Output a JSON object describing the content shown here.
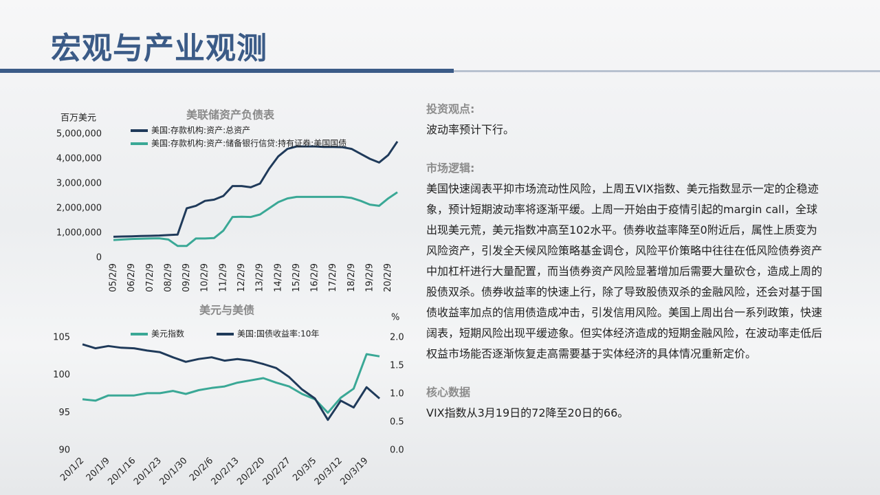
{
  "header": {
    "title": "宏观与产业观测"
  },
  "chart_data": [
    {
      "type": "line",
      "title": "美联储资产负债表",
      "ylabel": "百万美元",
      "categories": [
        "05/2/9",
        null,
        "06/2/9",
        null,
        "07/2/9",
        null,
        "08/2/9",
        null,
        "09/2/9",
        null,
        "10/2/9",
        null,
        "11/2/9",
        null,
        "12/2/9",
        null,
        "13/2/9",
        null,
        "14/2/9",
        null,
        "15/2/9",
        null,
        "16/2/9",
        null,
        "17/2/9",
        null,
        "18/2/9",
        null,
        "19/2/9",
        null,
        "20/2/9",
        null
      ],
      "series": [
        {
          "name": "美国:存款机构:资产:总资产",
          "color": "#1f3a5a",
          "values": [
            850000,
            860000,
            870000,
            880000,
            890000,
            900000,
            920000,
            940000,
            2000000,
            2100000,
            2300000,
            2350000,
            2500000,
            2900000,
            2900000,
            2850000,
            3000000,
            3600000,
            4100000,
            4400000,
            4500000,
            4500000,
            4500000,
            4480000,
            4480000,
            4470000,
            4400000,
            4200000,
            4000000,
            3850000,
            4150000,
            4700000
          ]
        },
        {
          "name": "美国:存款机构:资产:储备银行信贷:持有证券:美国国债",
          "color": "#3aa896",
          "values": [
            720000,
            740000,
            760000,
            770000,
            780000,
            790000,
            740000,
            480000,
            480000,
            780000,
            780000,
            800000,
            1100000,
            1650000,
            1660000,
            1650000,
            1750000,
            2000000,
            2250000,
            2400000,
            2460000,
            2460000,
            2460000,
            2460000,
            2460000,
            2460000,
            2420000,
            2300000,
            2150000,
            2100000,
            2400000,
            2650000
          ]
        }
      ],
      "ylim": [
        0,
        5000000
      ],
      "yticks": [
        0,
        {
          "value": 1000000,
          "label": "1,000,000"
        },
        {
          "value": 2000000,
          "label": "2,000,000"
        },
        {
          "value": 3000000,
          "label": "3,000,000"
        },
        {
          "value": 4000000,
          "label": "4,000,000"
        },
        {
          "value": 5000000,
          "label": "5,000,000"
        }
      ]
    },
    {
      "type": "line",
      "title": "美元与美债",
      "y2label": "%",
      "categories": [
        "20/1/2",
        null,
        "20/1/9",
        null,
        "20/1/16",
        null,
        "20/1/23",
        null,
        "20/1/30",
        null,
        "20/2/6",
        null,
        "20/2/13",
        null,
        "20/2/20",
        null,
        "20/2/27",
        null,
        "20/3/5",
        null,
        "20/3/12",
        null,
        "20/3/19",
        null
      ],
      "series": [
        {
          "name": "美元指数",
          "color": "#3aa896",
          "values": [
            96.8,
            96.6,
            97.3,
            97.3,
            97.3,
            97.6,
            97.6,
            97.9,
            97.5,
            98.0,
            98.3,
            98.5,
            99.0,
            99.3,
            99.6,
            99.0,
            98.5,
            97.5,
            96.8,
            95.0,
            97.0,
            98.2,
            102.8,
            102.5
          ]
        },
        {
          "name": "美国:国债收益率:10年",
          "color": "#1f3a5a",
          "axis": "y2",
          "values": [
            1.88,
            1.81,
            1.85,
            1.82,
            1.81,
            1.77,
            1.74,
            1.65,
            1.57,
            1.62,
            1.65,
            1.59,
            1.62,
            1.59,
            1.53,
            1.46,
            1.3,
            1.08,
            0.92,
            0.54,
            0.88,
            0.76,
            1.12,
            0.92
          ]
        }
      ],
      "ylim": [
        90,
        105
      ],
      "yticks": [
        90,
        95,
        100,
        105
      ],
      "y2lim": [
        0,
        2
      ],
      "y2ticks": [
        {
          "value": 0,
          "label": "0.0"
        },
        0.5,
        {
          "value": 1,
          "label": "1.0"
        },
        1.5,
        {
          "value": 2,
          "label": "2.0"
        }
      ]
    }
  ],
  "text": {
    "sections": [
      {
        "heading": "投资观点:",
        "body": "波动率预计下行。"
      },
      {
        "heading": "市场逻辑:",
        "body": "美国快速阔表平抑市场流动性风险，上周五VIX指数、美元指数显示一定的企稳迹象，预计短期波动率将逐渐平缓。上周一开始由于疫情引起的margin call，全球出现美元荒，美元指数冲高至102水平。债券收益率降至0附近后，属性上质变为风险资产，引发全天候风险策略基金调仓，风险平价策略中往往在低风险债券资产中加杠杆进行大量配置，而当债券资产风险显著增加后需要大量砍仓，造成上周的股债双杀。债券收益率的快速上行，除了导致股债双杀的金融风险，还会对基于国债收益率加点的信用债造成冲击，引发信用风险。美国上周出台一系列政策，快速阔表，短期风险出现平缓迹象。但实体经济造成的短期金融风险，在波动率走低后权益市场能否逐渐恢复走高需要基于实体经济的具体情况重新定价。"
      },
      {
        "heading": "核心数据",
        "body": "VIX指数从3月19日的72降至20日的66。"
      }
    ]
  }
}
